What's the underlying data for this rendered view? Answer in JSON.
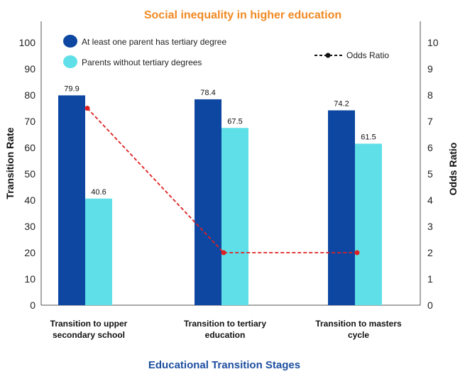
{
  "chart_data": {
    "type": "bar",
    "title": "Social  inequality  in higher education",
    "xlabel": "Educational Transition Stages",
    "ylabel": "Transition Rate",
    "y2label": "Odds Ratio",
    "ylim": [
      0,
      100
    ],
    "y2lim": [
      0,
      10
    ],
    "yticks": [
      0,
      10,
      20,
      30,
      40,
      50,
      60,
      70,
      80,
      90,
      100
    ],
    "y2ticks": [
      0,
      1,
      2,
      3,
      4,
      5,
      6,
      7,
      8,
      9,
      10
    ],
    "categories": [
      [
        "Transition to upper",
        "secondary school"
      ],
      [
        "Transition to tertiary",
        "education"
      ],
      [
        "Transition to masters",
        "cycle"
      ]
    ],
    "series": [
      {
        "name": "At least one parent has tertiary degree",
        "values": [
          79.9,
          78.4,
          74.2
        ],
        "labels": [
          "79.9",
          "78.4",
          "74.2"
        ],
        "color": "#0d47a1"
      },
      {
        "name": "Parents without tertiary degrees",
        "values": [
          40.6,
          67.5,
          61.5
        ],
        "labels": [
          "40.6",
          "67.5",
          "61.5"
        ],
        "color": "#5fdfe8"
      }
    ],
    "line_series": {
      "name": "Odds Ratio",
      "values": [
        7.5,
        2.0,
        2.0
      ],
      "color": "#e02020",
      "axis": "right"
    },
    "grid": false,
    "legend_position": "top-left"
  }
}
